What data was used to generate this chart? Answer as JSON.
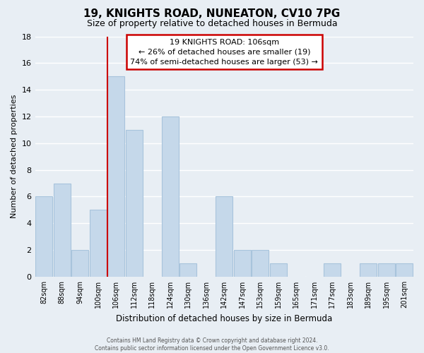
{
  "title": "19, KNIGHTS ROAD, NUNEATON, CV10 7PG",
  "subtitle": "Size of property relative to detached houses in Bermuda",
  "xlabel": "Distribution of detached houses by size in Bermuda",
  "ylabel": "Number of detached properties",
  "categories": [
    "82sqm",
    "88sqm",
    "94sqm",
    "100sqm",
    "106sqm",
    "112sqm",
    "118sqm",
    "124sqm",
    "130sqm",
    "136sqm",
    "142sqm",
    "147sqm",
    "153sqm",
    "159sqm",
    "165sqm",
    "171sqm",
    "177sqm",
    "183sqm",
    "189sqm",
    "195sqm",
    "201sqm"
  ],
  "values": [
    6,
    7,
    2,
    5,
    15,
    11,
    0,
    12,
    1,
    0,
    6,
    2,
    2,
    1,
    0,
    0,
    1,
    0,
    1,
    1,
    1
  ],
  "bar_color": "#c5d8ea",
  "bar_edge_color": "#a8c4dc",
  "annotation_title": "19 KNIGHTS ROAD: 106sqm",
  "annotation_line1": "← 26% of detached houses are smaller (19)",
  "annotation_line2": "74% of semi-detached houses are larger (53) →",
  "annotation_box_facecolor": "#ffffff",
  "annotation_box_edgecolor": "#cc0000",
  "property_line_index": 4,
  "property_line_color": "#cc0000",
  "ylim": [
    0,
    18
  ],
  "yticks": [
    0,
    2,
    4,
    6,
    8,
    10,
    12,
    14,
    16,
    18
  ],
  "footer_line1": "Contains HM Land Registry data © Crown copyright and database right 2024.",
  "footer_line2": "Contains public sector information licensed under the Open Government Licence v3.0.",
  "bg_color": "#e8eef4",
  "plot_bg_color": "#e8eef4",
  "grid_color": "#ffffff",
  "title_fontsize": 11,
  "subtitle_fontsize": 9,
  "ylabel_fontsize": 8,
  "xlabel_fontsize": 8.5,
  "tick_fontsize": 8,
  "xtick_fontsize": 7
}
